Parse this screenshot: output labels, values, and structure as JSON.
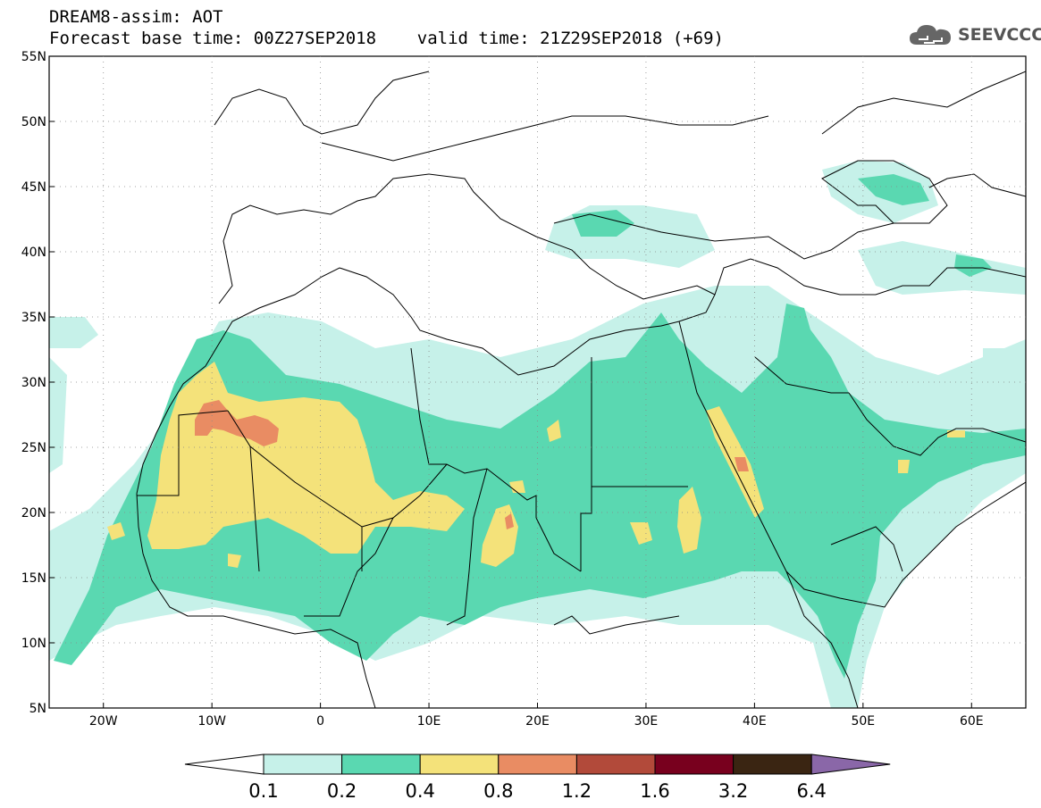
{
  "title": {
    "line1": "DREAM8-assim: AOT",
    "line2": "Forecast base time: 00Z27SEP2018    valid time: 21Z29SEP2018 (+69)"
  },
  "logo": {
    "text": "SEEVCCC",
    "icon": "cloud-icon"
  },
  "map": {
    "lon_range": [
      -25,
      65
    ],
    "lat_range": [
      5,
      55
    ],
    "lon_ticks": [
      "20W",
      "10W",
      "0",
      "10E",
      "20E",
      "30E",
      "40E",
      "50E",
      "60E"
    ],
    "lat_ticks": [
      "55N",
      "50N",
      "45N",
      "40N",
      "35N",
      "30N",
      "25N",
      "20N",
      "15N",
      "10N",
      "5N"
    ],
    "grid": "dotted"
  },
  "colorbar": {
    "labels": [
      "0.1",
      "0.2",
      "0.4",
      "0.8",
      "1.2",
      "1.6",
      "3.2",
      "6.4"
    ],
    "colors": [
      "#ffffff",
      "#c6f1e9",
      "#5ad8b1",
      "#f4e27a",
      "#e98c63",
      "#b24a3a",
      "#78001e",
      "#3a2512",
      "#8a67a8"
    ]
  },
  "colors": {
    "c1": "#c6f1e9",
    "c2": "#5ad8b1",
    "c3": "#f4e27a",
    "c4": "#e98c63",
    "border": "#000000"
  }
}
